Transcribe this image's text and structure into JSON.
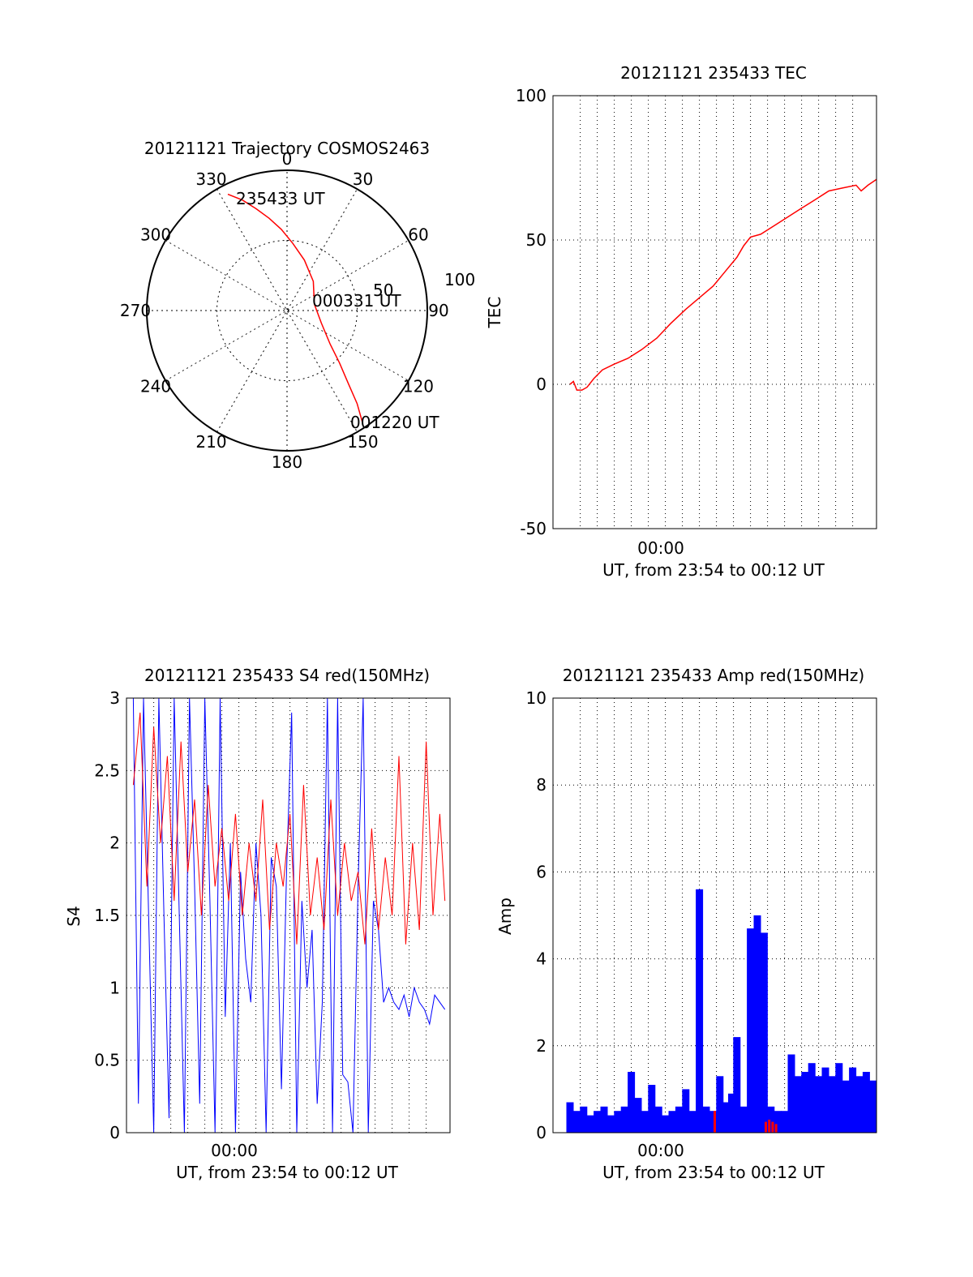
{
  "chart_data": [
    {
      "id": "polar",
      "type": "scatter",
      "title": "20121121 Trajectory COSMOS2463",
      "angle_labels": [
        "0",
        "30",
        "60",
        "90",
        "120",
        "150",
        "180",
        "210",
        "240",
        "270",
        "300",
        "330"
      ],
      "radial_labels": [
        "50",
        "100"
      ],
      "rlim": [
        0,
        100
      ],
      "track": {
        "color": "#ff0000",
        "azimuth": [
          333,
          338,
          343,
          349,
          356,
          5,
          19,
          42,
          77,
          110,
          128,
          135,
          140,
          143,
          146
        ],
        "zenith": [
          93,
          85,
          76,
          67,
          58,
          48,
          38,
          28,
          20,
          26,
          39,
          53,
          68,
          83,
          96
        ]
      },
      "annotations": [
        "235433 UT",
        "000331 UT",
        "001220 UT"
      ]
    },
    {
      "id": "tec",
      "type": "line",
      "title": "20121121 235433 TEC",
      "xlabel": "UT, from 23:54 to 00:12 UT",
      "ylabel": "TEC",
      "xtick_label": "00:00",
      "ylim": [
        -50,
        100
      ],
      "yticks": [
        "-50",
        "0",
        "50",
        "100"
      ],
      "x_minutes": [
        -5.6,
        -5.4,
        -5.2,
        -4.9,
        -4.6,
        -4.2,
        -3.7,
        -3.0,
        -2.2,
        -1.4,
        -0.5,
        0.3,
        1.2,
        2.0,
        2.8,
        3.5,
        4.2,
        4.6,
        5.0,
        5.6,
        6.4,
        7.2,
        8.0,
        8.8,
        9.6,
        10.4,
        11.2,
        11.5,
        11.9,
        12.4
      ],
      "y": [
        0,
        1,
        -2,
        -2,
        -1,
        2,
        5,
        7,
        9,
        12,
        16,
        21,
        26,
        30,
        34,
        39,
        44,
        48,
        51,
        52,
        55,
        58,
        61,
        64,
        67,
        68,
        69,
        67,
        69,
        71
      ],
      "color": "#ff0000"
    },
    {
      "id": "s4",
      "type": "line",
      "title": "20121121 235433 S4 red(150MHz)",
      "xlabel": "UT, from 23:54 to 00:12 UT",
      "ylabel": "S4",
      "xtick_label": "00:00",
      "ylim": [
        0,
        3
      ],
      "yticks": [
        "0",
        "0.5",
        "1",
        "1.5",
        "2",
        "2.5",
        "3"
      ],
      "series": [
        {
          "color": "#0000ff",
          "x_minutes": [
            -6.2,
            -5.9,
            -5.6,
            -5.3,
            -5.0,
            -4.7,
            -4.4,
            -4.1,
            -3.8,
            -3.5,
            -3.2,
            -2.9,
            -2.6,
            -2.3,
            -2.0,
            -1.7,
            -1.4,
            -1.1,
            -0.8,
            -0.5,
            -0.2,
            0.1,
            0.4,
            0.7,
            1.0,
            1.3,
            1.6,
            1.9,
            2.2,
            2.5,
            2.8,
            3.1,
            3.4,
            3.7,
            4.0,
            4.3,
            4.6,
            4.9,
            5.2,
            5.5,
            5.8,
            6.1,
            6.4,
            6.7,
            7.0,
            7.3,
            7.6,
            7.9,
            8.2,
            8.5,
            8.8,
            9.1,
            9.4,
            9.7,
            10.0,
            10.3,
            10.6,
            10.9,
            11.2,
            11.5,
            11.8,
            12.1
          ],
          "y": [
            3.0,
            0.2,
            3.0,
            1.5,
            0.0,
            3.0,
            1.5,
            0.1,
            3.0,
            1.5,
            0.0,
            3.0,
            1.7,
            0.2,
            3.0,
            1.6,
            0.0,
            3.0,
            0.8,
            2.0,
            0.0,
            1.8,
            1.2,
            0.9,
            2.0,
            1.5,
            0.0,
            1.9,
            1.7,
            0.3,
            1.8,
            2.9,
            0.0,
            1.6,
            1.0,
            1.4,
            0.2,
            0.9,
            3.0,
            0.0,
            3.0,
            0.4,
            0.35,
            0.0,
            1.7,
            3.0,
            0.0,
            1.6,
            1.4,
            0.9,
            1.0,
            0.9,
            0.85,
            0.95,
            0.8,
            1.0,
            0.9,
            0.85,
            0.75,
            0.95,
            0.9,
            0.85
          ]
        },
        {
          "color": "#ff0000",
          "x_minutes": [
            -6.2,
            -5.8,
            -5.4,
            -5.0,
            -4.6,
            -4.2,
            -3.8,
            -3.4,
            -3.0,
            -2.6,
            -2.2,
            -1.8,
            -1.4,
            -1.0,
            -0.6,
            -0.2,
            0.2,
            0.6,
            1.0,
            1.4,
            1.8,
            2.2,
            2.6,
            3.0,
            3.4,
            3.8,
            4.2,
            4.6,
            5.0,
            5.4,
            5.8,
            6.2,
            6.6,
            7.0,
            7.4,
            7.8,
            8.2,
            8.6,
            9.0,
            9.4,
            9.8,
            10.2,
            10.6,
            11.0,
            11.4,
            11.8,
            12.1
          ],
          "y": [
            2.4,
            2.9,
            1.7,
            2.8,
            2.0,
            2.6,
            1.6,
            2.7,
            1.8,
            2.3,
            1.5,
            2.4,
            1.7,
            2.1,
            1.6,
            2.2,
            1.5,
            2.0,
            1.6,
            2.3,
            1.4,
            2.0,
            1.7,
            2.2,
            1.3,
            2.4,
            1.5,
            1.9,
            1.4,
            2.3,
            1.5,
            2.0,
            1.6,
            1.8,
            1.3,
            2.1,
            1.4,
            1.9,
            1.5,
            2.6,
            1.3,
            2.0,
            1.4,
            2.7,
            1.5,
            2.2,
            1.6
          ]
        }
      ]
    },
    {
      "id": "amp",
      "type": "bar",
      "title": "20121121 235433 Amp red(150MHz)",
      "xlabel": "UT, from 23:54 to 00:12 UT",
      "ylabel": "Amp",
      "xtick_label": "00:00",
      "ylim": [
        0,
        10
      ],
      "yticks": [
        "0",
        "2",
        "4",
        "6",
        "8",
        "10"
      ],
      "series": [
        {
          "color": "#0000ff",
          "x_minutes": [
            -5.6,
            -5.2,
            -4.8,
            -4.4,
            -4.0,
            -3.6,
            -3.2,
            -2.8,
            -2.4,
            -2.0,
            -1.6,
            -1.2,
            -0.8,
            -0.4,
            0.0,
            0.4,
            0.8,
            1.2,
            1.6,
            2.0,
            2.4,
            2.8,
            3.2,
            3.6,
            3.9,
            4.2,
            4.6,
            5.0,
            5.4,
            5.8,
            6.2,
            6.6,
            7.0,
            7.4,
            7.8,
            8.2,
            8.6,
            9.0,
            9.4,
            9.8,
            10.2,
            10.6,
            11.0,
            11.4,
            11.8,
            12.2
          ],
          "y": [
            0.7,
            0.5,
            0.6,
            0.4,
            0.5,
            0.6,
            0.4,
            0.5,
            0.6,
            1.4,
            0.8,
            0.5,
            1.1,
            0.6,
            0.4,
            0.5,
            0.6,
            1.0,
            0.5,
            5.6,
            0.6,
            0.5,
            1.3,
            0.7,
            0.9,
            2.2,
            0.6,
            4.7,
            5.0,
            4.6,
            0.6,
            0.5,
            0.5,
            1.8,
            1.3,
            1.4,
            1.6,
            1.3,
            1.5,
            1.3,
            1.6,
            1.2,
            1.5,
            1.3,
            1.4,
            1.2
          ]
        },
        {
          "color": "#ff0000",
          "x_minutes": [
            2.9,
            5.9,
            6.1,
            6.3,
            6.5
          ],
          "y": [
            0.5,
            0.25,
            0.3,
            0.25,
            0.2
          ]
        }
      ]
    }
  ]
}
